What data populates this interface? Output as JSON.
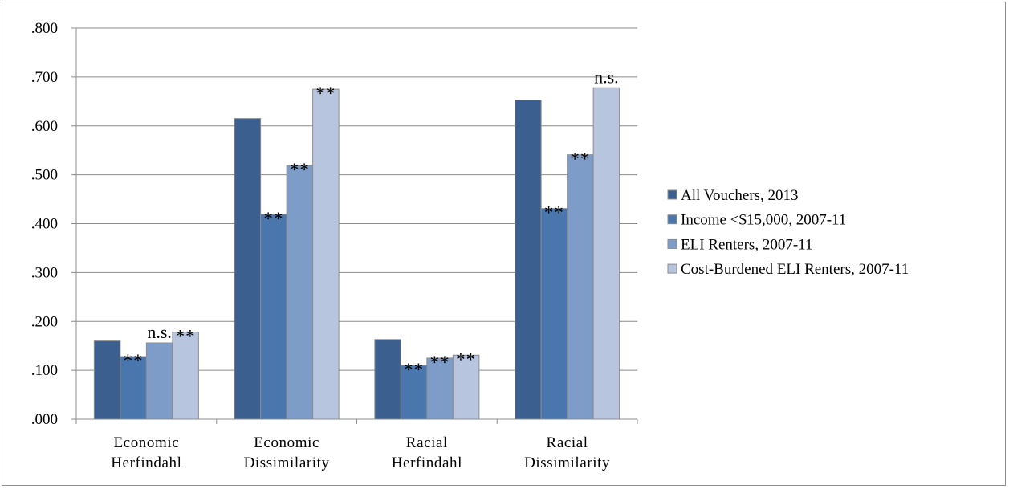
{
  "chart_data": {
    "type": "bar",
    "title": "",
    "xlabel": "",
    "ylabel": "",
    "ylim": [
      0,
      0.8
    ],
    "yticks": [
      ".000",
      ".100",
      ".200",
      ".300",
      ".400",
      ".500",
      ".600",
      ".700",
      ".800"
    ],
    "grid": true,
    "legend_position": "right",
    "categories": [
      [
        "Economic",
        "Herfindahl"
      ],
      [
        "Economic",
        "Dissimilarity"
      ],
      [
        "Racial",
        "Herfindahl"
      ],
      [
        "Racial",
        "Dissimilarity"
      ]
    ],
    "series": [
      {
        "name": "All Vouchers, 2013",
        "color": "#3b5f8f",
        "values": [
          0.16,
          0.615,
          0.163,
          0.653
        ],
        "annotations": [
          "",
          "",
          "",
          ""
        ]
      },
      {
        "name": "Income <$15,000, 2007-11",
        "color": "#4a76ae",
        "values": [
          0.128,
          0.419,
          0.11,
          0.431
        ],
        "annotations": [
          "**",
          "**",
          "**",
          "**"
        ]
      },
      {
        "name": "ELI Renters, 2007-11",
        "color": "#7d9cc8",
        "values": [
          0.156,
          0.519,
          0.125,
          0.541
        ],
        "annotations": [
          "n.s.",
          "**",
          "**",
          "**"
        ]
      },
      {
        "name": "Cost-Burdened ELI Renters, 2007-11",
        "color": "#b7c5df",
        "values": [
          0.178,
          0.675,
          0.131,
          0.678
        ],
        "annotations": [
          "**",
          "**",
          "**",
          "n.s."
        ]
      }
    ]
  }
}
